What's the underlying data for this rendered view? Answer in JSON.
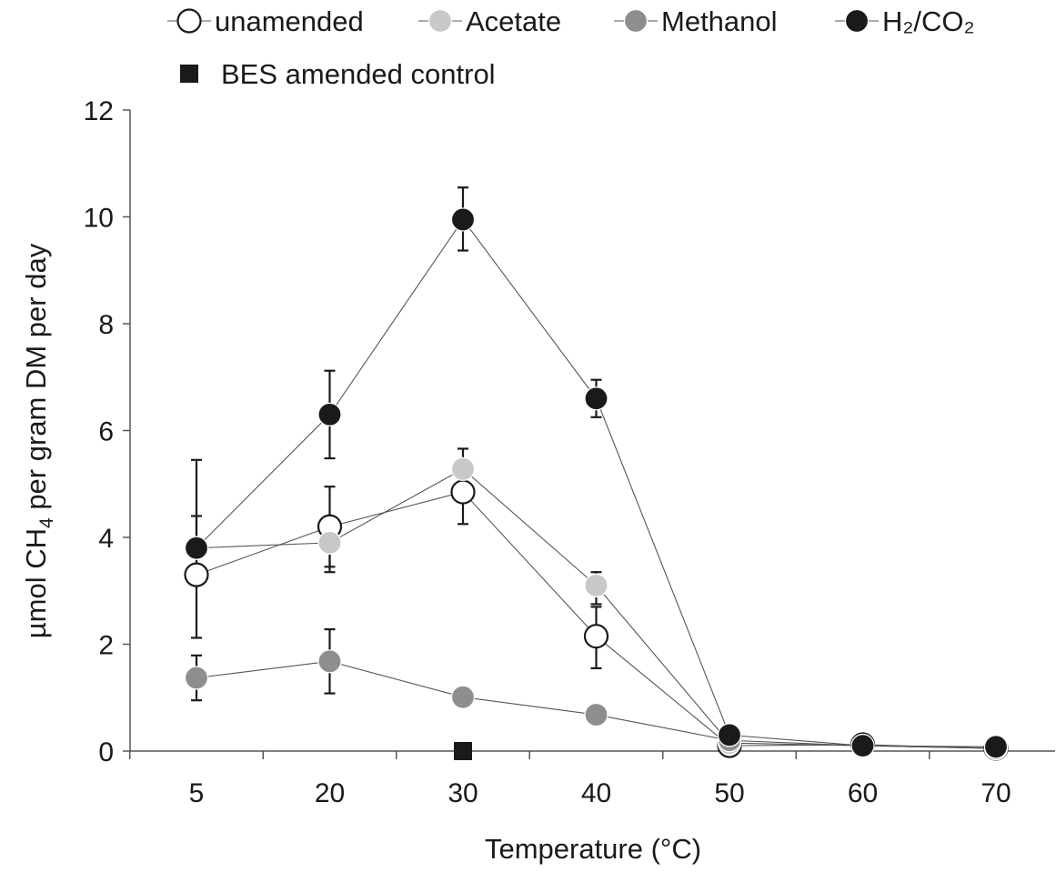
{
  "chart_data": {
    "type": "line",
    "title": "",
    "xlabel": "Temperature (°C)",
    "ylabel": "µmol CH",
    "ylabel_sub": "4",
    "ylabel_rest": " per gram DM per day",
    "categories": [
      "5",
      "20",
      "30",
      "40",
      "50",
      "60",
      "70"
    ],
    "ylim": [
      0,
      12
    ],
    "yticks": [
      "0",
      "2",
      "4",
      "6",
      "8",
      "10",
      "12"
    ],
    "grid": false,
    "legend_position": "top",
    "series": [
      {
        "name": "unamended",
        "marker": "circle",
        "fill": "#ffffff",
        "stroke": "#1a1a1a",
        "values": [
          3.3,
          4.2,
          4.85,
          2.15,
          0.1,
          0.12,
          0.05
        ],
        "err_low": [
          1.18,
          0.85,
          0.6,
          0.6,
          0,
          0,
          0
        ],
        "err_high": [
          1.1,
          0.75,
          0.5,
          0.55,
          0,
          0,
          0
        ]
      },
      {
        "name": "Acetate",
        "marker": "circle",
        "fill": "#c8c8c8",
        "stroke": "#c8c8c8",
        "values": [
          3.8,
          3.9,
          5.28,
          3.1,
          0.15,
          0.1,
          0.05
        ],
        "err_low": [
          0,
          0.45,
          0,
          0.35,
          0,
          0,
          0
        ],
        "err_high": [
          0,
          0.45,
          0.38,
          0.25,
          0,
          0,
          0
        ]
      },
      {
        "name": "Methanol",
        "marker": "circle",
        "fill": "#8e8e8e",
        "stroke": "#8e8e8e",
        "values": [
          1.37,
          1.68,
          1.01,
          0.68,
          0.2,
          0.1,
          0.05
        ],
        "err_low": [
          0.42,
          0.6,
          0,
          0,
          0,
          0,
          0
        ],
        "err_high": [
          0.42,
          0.6,
          0,
          0,
          0,
          0,
          0
        ]
      },
      {
        "name": "H₂/CO₂",
        "marker": "circle",
        "fill": "#1a1a1a",
        "stroke": "#1a1a1a",
        "values": [
          3.8,
          6.3,
          9.95,
          6.6,
          0.3,
          0.1,
          0.08
        ],
        "err_low": [
          0,
          0.82,
          0.58,
          0.35,
          0,
          0,
          0
        ],
        "err_high": [
          1.65,
          0.82,
          0.6,
          0.35,
          0,
          0,
          0
        ]
      }
    ],
    "control": {
      "name": "BES amended control",
      "marker": "square",
      "fill": "#1a1a1a",
      "category": "30",
      "value": 0
    }
  }
}
